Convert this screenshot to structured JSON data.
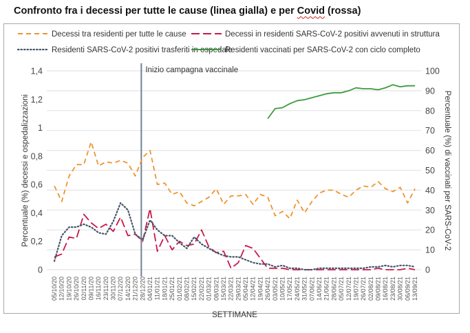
{
  "title_parts": {
    "before": "Confronto fra i decessi per tutte le cause (linea gialla) e per ",
    "covid": "Covid",
    "after": " (rossa)"
  },
  "chart_data": {
    "type": "line",
    "title": "Confronto fra i decessi per tutte le cause (linea gialla) e per Covid (rossa)",
    "xlabel": "SETTIMANE",
    "ylabel_left": "Percentuale (%) decessi e ospedalizzazioni",
    "ylabel_right": "Percentuale (%) di vaccinati per SARS-CoV-2",
    "ylim_left": [
      0,
      1.4
    ],
    "ylim_right": [
      0,
      100
    ],
    "yticks_left": [
      "0",
      "0,2",
      "0,4",
      "0,6",
      "0,8",
      "1",
      "1,2",
      "1,4"
    ],
    "yticks_right": [
      "0",
      "10",
      "20",
      "30",
      "40",
      "50",
      "60",
      "70",
      "80",
      "90",
      "100"
    ],
    "grid": true,
    "legend_position": "top",
    "annotation": {
      "label": "Inizio campagna vaccinale",
      "x": "28/12/20"
    },
    "x": [
      "05/10/20",
      "12/10/20",
      "19/10/20",
      "26/10/20",
      "02/11/20",
      "09/11/20",
      "16/11/20",
      "23/11/20",
      "30/11/20",
      "07/12/20",
      "14/12/20",
      "21/12/20",
      "28/12/20",
      "04/01/21",
      "11/01/21",
      "18/01/21",
      "25/01/21",
      "01/02/21",
      "08/02/21",
      "15/02/21",
      "22/02/21",
      "01/03/21",
      "08/03/21",
      "15/03/21",
      "22/03/21",
      "29/03/21",
      "05/04/21",
      "12/04/21",
      "19/04/21",
      "26/04/21",
      "03/05/21",
      "10/05/21",
      "17/05/21",
      "24/05/21",
      "31/05/21",
      "07/06/21",
      "14/06/21",
      "21/06/21",
      "28/06/21",
      "05/07/21",
      "12/07/21",
      "19/07/21",
      "26/07/21",
      "02/08/21",
      "09/08/21",
      "16/08/21",
      "23/08/21",
      "30/08/21",
      "06/09/21",
      "13/09/21"
    ],
    "series": [
      {
        "name": "Decessi tra residenti per tutte le cause",
        "axis": "left",
        "color": "#f0922c",
        "style": "dashed",
        "values": [
          0.59,
          0.48,
          0.66,
          0.74,
          0.74,
          0.9,
          0.73,
          0.76,
          0.75,
          0.77,
          0.75,
          0.66,
          0.79,
          0.84,
          0.6,
          0.61,
          0.53,
          0.55,
          0.47,
          0.45,
          0.48,
          0.51,
          0.57,
          0.46,
          0.52,
          0.52,
          0.53,
          0.46,
          0.53,
          0.51,
          0.38,
          0.41,
          0.36,
          0.49,
          0.4,
          0.48,
          0.54,
          0.56,
          0.56,
          0.53,
          0.51,
          0.56,
          0.59,
          0.58,
          0.62,
          0.57,
          0.55,
          0.58,
          0.47,
          0.57
        ]
      },
      {
        "name": "Decessi in residenti SARS-CoV-2 positivi avvenuti in struttura",
        "axis": "left",
        "color": "#c8184a",
        "style": "longdash",
        "values": [
          0.09,
          0.11,
          0.23,
          0.22,
          0.39,
          0.33,
          0.29,
          0.32,
          0.27,
          0.37,
          0.24,
          0.25,
          0.2,
          0.43,
          0.13,
          0.24,
          0.14,
          0.2,
          0.17,
          0.18,
          0.28,
          0.16,
          0.12,
          0.13,
          0.01,
          0.05,
          0.17,
          0.15,
          0.08,
          0.01,
          0.01,
          0.01,
          0.0,
          0.0,
          0.0,
          0.0,
          0.0,
          0.0,
          0.0,
          0.0,
          0.0,
          0.0,
          0.0,
          0.0,
          0.01,
          0.0,
          0.0,
          0.0,
          0.01,
          0.0
        ]
      },
      {
        "name": "Residenti SARS-CoV-2 positivi trasferiti in ospedale",
        "axis": "left",
        "color": "#44546a",
        "style": "dotted",
        "values": [
          0.06,
          0.24,
          0.3,
          0.3,
          0.32,
          0.3,
          0.26,
          0.25,
          0.34,
          0.47,
          0.42,
          0.25,
          0.21,
          0.35,
          0.28,
          0.24,
          0.24,
          0.19,
          0.15,
          0.23,
          0.18,
          0.15,
          0.12,
          0.1,
          0.09,
          0.09,
          0.07,
          0.05,
          0.04,
          0.04,
          0.02,
          0.03,
          0.01,
          0.01,
          0.0,
          0.0,
          0.01,
          0.01,
          0.01,
          0.01,
          0.01,
          0.01,
          0.01,
          0.02,
          0.02,
          0.03,
          0.02,
          0.03,
          0.03,
          0.02
        ]
      },
      {
        "name": "Residenti vaccinati per SARS-CoV-2 con ciclo completo",
        "axis": "right",
        "color": "#3a9a3a",
        "style": "solid",
        "values": [
          null,
          null,
          null,
          null,
          null,
          null,
          null,
          null,
          null,
          null,
          null,
          null,
          null,
          null,
          null,
          null,
          null,
          null,
          null,
          null,
          null,
          null,
          null,
          null,
          null,
          null,
          null,
          null,
          null,
          76,
          81,
          81.5,
          83.5,
          85,
          85.5,
          86.5,
          87.5,
          88.5,
          89,
          89,
          90,
          91.5,
          91,
          91,
          90.5,
          91.5,
          93,
          92,
          92.5,
          92.5
        ]
      }
    ]
  }
}
